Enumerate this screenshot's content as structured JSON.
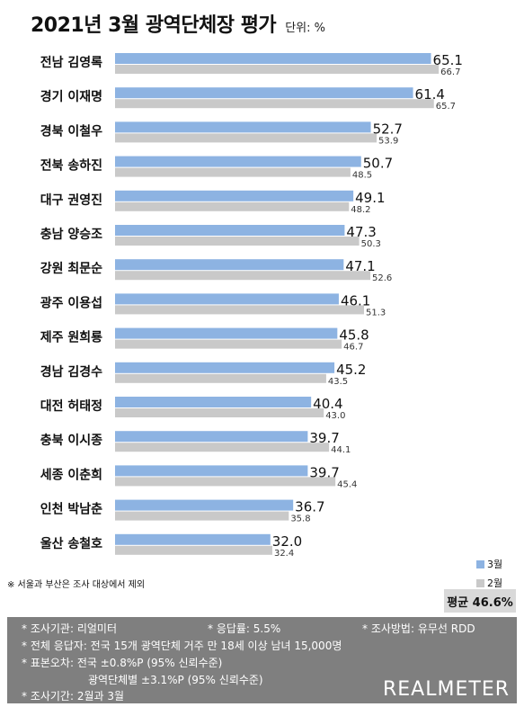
{
  "chart_data": {
    "type": "bar",
    "title": "2021년 3월 광역단체장 평가",
    "unit": "단위: %",
    "categories": [
      "전남 김영록",
      "경기 이재명",
      "경북 이철우",
      "전북 송하진",
      "대구 권영진",
      "충남 양승조",
      "강원 최문순",
      "광주 이용섭",
      "제주 원희룡",
      "경남 김경수",
      "대전 허태정",
      "충북 이시종",
      "세종 이춘희",
      "인천 박남춘",
      "울산 송철호"
    ],
    "series": [
      {
        "name": "3월",
        "color": "#8db3e2",
        "values": [
          65.1,
          61.4,
          52.7,
          50.7,
          49.1,
          47.3,
          47.1,
          46.1,
          45.8,
          45.2,
          40.4,
          39.7,
          39.7,
          36.7,
          32.0
        ]
      },
      {
        "name": "2월",
        "color": "#c9c9c9",
        "values": [
          66.7,
          65.7,
          53.9,
          48.5,
          48.2,
          50.3,
          52.6,
          51.3,
          46.7,
          43.5,
          43.0,
          44.1,
          45.4,
          35.8,
          32.4
        ]
      }
    ],
    "legend": "bottom-right",
    "average_label": "평균 46.6%"
  },
  "note": "※ 서울과 부산은 조사 대상에서 제외",
  "footer": {
    "agency": "* 조사기관: 리얼미터",
    "response_rate": "* 응답률: 5.5%",
    "method": "* 조사방법: 유무선 RDD",
    "respondents": "* 전체 응답자: 전국 15개 광역단체 거주 만 18세 이상 남녀 15,000명",
    "error": "* 표본오차: 전국 ±0.8%P (95% 신뢰수준)",
    "error_regional": "광역단체별 ±3.1%P (95% 신뢰수준)",
    "period": "* 조사기간: 2월과 3월",
    "brand": "REALMETER"
  }
}
